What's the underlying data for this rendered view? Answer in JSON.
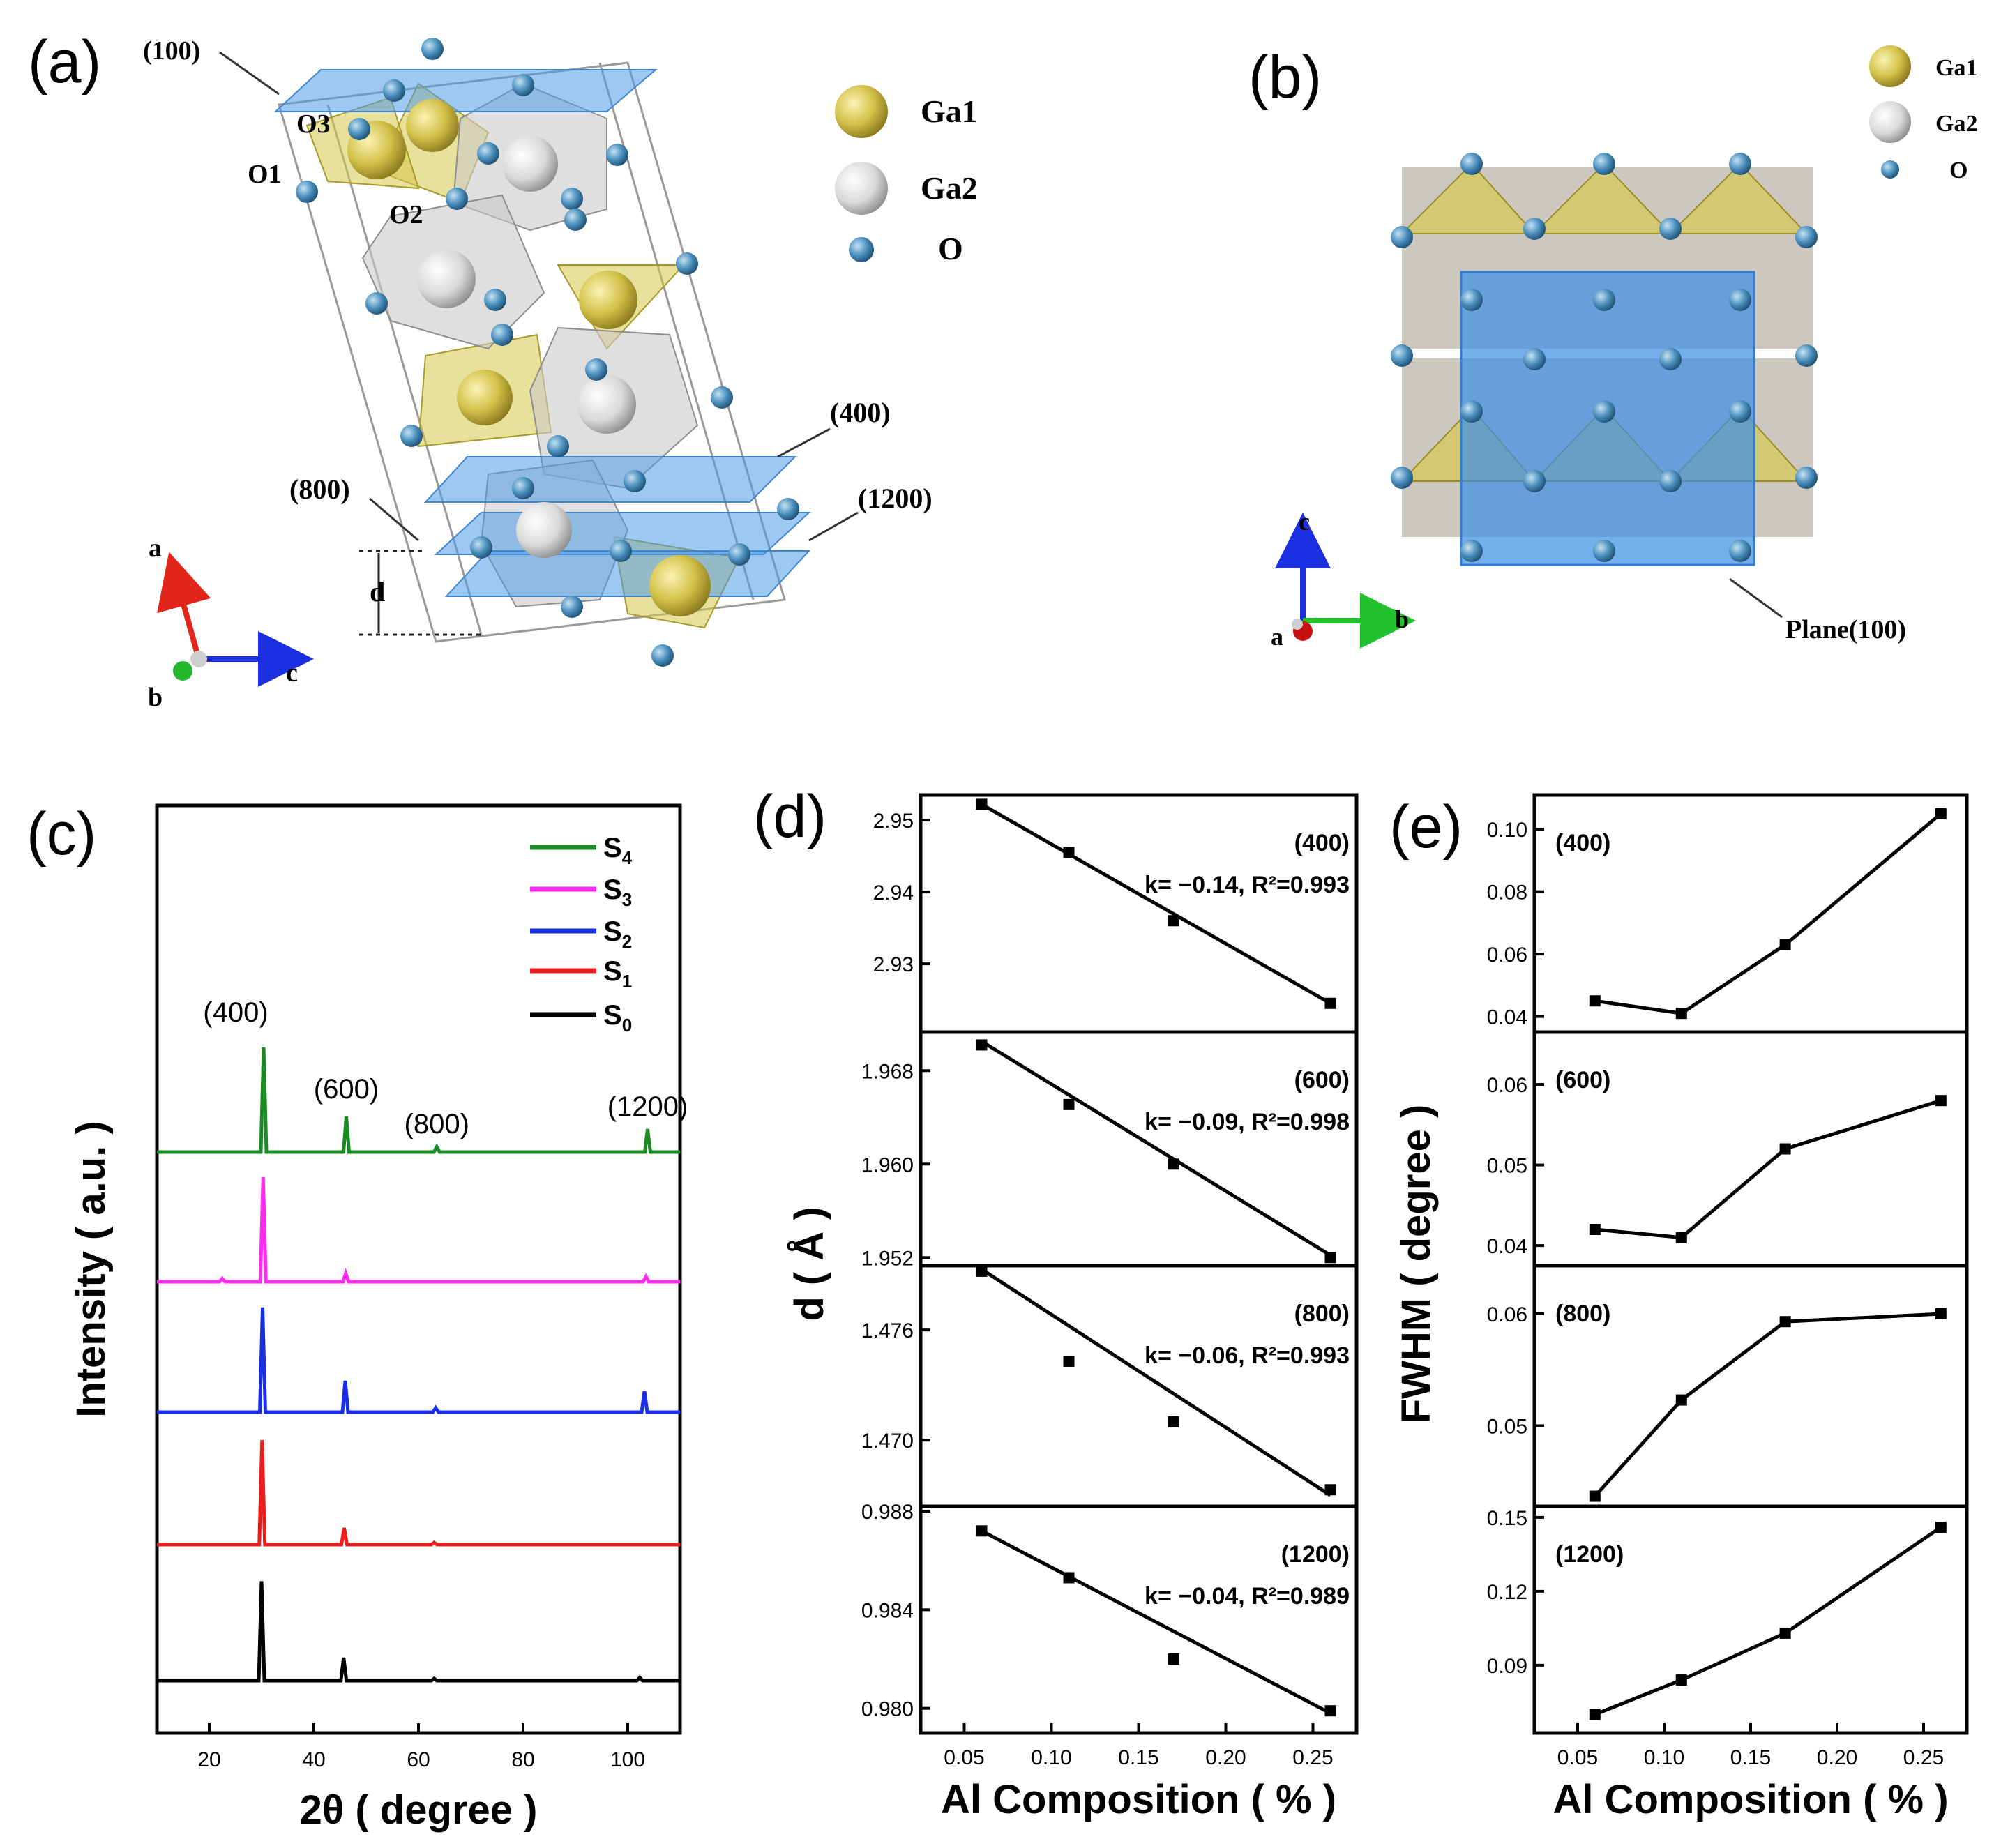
{
  "panel_labels": {
    "a": "(a)",
    "b": "(b)",
    "c": "(c)",
    "d": "(d)",
    "e": "(e)"
  },
  "panel_a": {
    "planes": [
      "(100)",
      "(400)",
      "(800)",
      "(1200)"
    ],
    "oxygen_sites": [
      "O1",
      "O2",
      "O3"
    ],
    "spacing": "d",
    "axes": {
      "a": "a",
      "b": "b",
      "c": "c"
    },
    "legend": [
      {
        "name": "Ga1",
        "color": "#d6c84a"
      },
      {
        "name": "Ga2",
        "color": "#dcdcdc"
      },
      {
        "name": "O",
        "color": "#3f86b4"
      }
    ]
  },
  "panel_b": {
    "plane_label": "Plane(100)",
    "axes": {
      "a": "a",
      "b": "b",
      "c": "c"
    },
    "legend": [
      "Ga1",
      "Ga2",
      "O"
    ]
  },
  "chart_data": [
    {
      "id": "c",
      "type": "line",
      "xlabel": "2θ ( degree )",
      "ylabel": "Intensity ( a.u. )",
      "xlim": [
        10,
        110
      ],
      "xticks": [
        20,
        40,
        60,
        80,
        100
      ],
      "peak_labels": [
        {
          "text": "(400)",
          "x": 30.4
        },
        {
          "text": "(600)",
          "x": 46.2
        },
        {
          "text": "(800)",
          "x": 63.5
        },
        {
          "text": "(1200)",
          "x": 103.8
        }
      ],
      "series": [
        {
          "name": "S4",
          "base": "S",
          "sub": "4",
          "color": "#1a8a22",
          "peaks": [
            [
              30.4,
              1.0
            ],
            [
              46.2,
              0.34
            ],
            [
              63.5,
              0.05
            ],
            [
              103.8,
              0.22
            ]
          ]
        },
        {
          "name": "S3",
          "base": "S",
          "sub": "3",
          "color": "#ff2cf0",
          "peaks": [
            [
              30.3,
              1.0
            ],
            [
              46.1,
              0.08
            ],
            [
              22.5,
              0.03
            ],
            [
              103.5,
              0.05
            ]
          ]
        },
        {
          "name": "S2",
          "base": "S",
          "sub": "2",
          "color": "#1a2ee6",
          "peaks": [
            [
              30.2,
              1.0
            ],
            [
              46.0,
              0.3
            ],
            [
              63.3,
              0.04
            ],
            [
              103.2,
              0.2
            ]
          ]
        },
        {
          "name": "S1",
          "base": "S",
          "sub": "1",
          "color": "#ee1c1c",
          "peaks": [
            [
              30.1,
              1.0
            ],
            [
              45.8,
              0.16
            ],
            [
              63.0,
              0.02
            ]
          ]
        },
        {
          "name": "S0",
          "base": "S",
          "sub": "0",
          "color": "#000000",
          "peaks": [
            [
              30.0,
              0.95
            ],
            [
              45.7,
              0.22
            ],
            [
              63.0,
              0.02
            ],
            [
              102.3,
              0.03
            ]
          ]
        }
      ]
    },
    {
      "id": "d",
      "type": "line",
      "xlabel": "Al Composition ( % )",
      "ylabel": "d ( Å )",
      "xlim": [
        0.025,
        0.275
      ],
      "xticks": [
        0.05,
        0.1,
        0.15,
        0.2,
        0.25
      ],
      "xtick_labels": [
        "0.05",
        "0.10",
        "0.15",
        "0.20",
        "0.25"
      ],
      "subplots": [
        {
          "label": "(400)",
          "fit": "k= −0.14, R²=0.993",
          "ylim": [
            2.9205,
            2.9535
          ],
          "yticks": [
            2.93,
            2.94,
            2.95
          ],
          "ytick_labels": [
            "2.93",
            "2.94",
            "2.95"
          ],
          "x": [
            0.06,
            0.11,
            0.17,
            0.26
          ],
          "y": [
            2.9522,
            2.9455,
            2.936,
            2.9245
          ],
          "fit_line": [
            [
              0.06,
              2.9522
            ],
            [
              0.26,
              2.9245
            ]
          ]
        },
        {
          "label": "(600)",
          "fit": "k= −0.09, R²=0.998",
          "ylim": [
            1.9513,
            1.9713
          ],
          "yticks": [
            1.952,
            1.96,
            1.968
          ],
          "ytick_labels": [
            "1.952",
            "1.960",
            "1.968"
          ],
          "x": [
            0.06,
            0.11,
            0.17,
            0.26
          ],
          "y": [
            1.9702,
            1.9651,
            1.96,
            1.952
          ],
          "fit_line": [
            [
              0.06,
              1.9705
            ],
            [
              0.26,
              1.9522
            ]
          ]
        },
        {
          "label": "(800)",
          "fit": "k= −0.06, R²=0.993",
          "ylim": [
            1.4664,
            1.4795
          ],
          "yticks": [
            1.47,
            1.476
          ],
          "ytick_labels": [
            "1.470",
            "1.476"
          ],
          "x": [
            0.06,
            0.11,
            0.17,
            0.26
          ],
          "y": [
            1.4792,
            1.4743,
            1.471,
            1.4673
          ],
          "fit_line": [
            [
              0.06,
              1.4793
            ],
            [
              0.26,
              1.467
            ]
          ]
        },
        {
          "label": "(1200)",
          "fit": "k= −0.04, R²=0.989",
          "ylim": [
            0.979,
            0.9882
          ],
          "yticks": [
            0.98,
            0.984,
            0.988
          ],
          "ytick_labels": [
            "0.980",
            "0.984",
            "0.988"
          ],
          "x": [
            0.06,
            0.11,
            0.17,
            0.26
          ],
          "y": [
            0.9872,
            0.9853,
            0.982,
            0.9799
          ],
          "fit_line": [
            [
              0.06,
              0.9872
            ],
            [
              0.26,
              0.9798
            ]
          ]
        }
      ]
    },
    {
      "id": "e",
      "type": "line",
      "xlabel": "Al Composition ( % )",
      "ylabel": "FWHM ( degree )",
      "xlim": [
        0.025,
        0.275
      ],
      "xticks": [
        0.05,
        0.1,
        0.15,
        0.2,
        0.25
      ],
      "xtick_labels": [
        "0.05",
        "0.10",
        "0.15",
        "0.20",
        "0.25"
      ],
      "subplots": [
        {
          "label": "(400)",
          "ylim": [
            0.035,
            0.111
          ],
          "yticks": [
            0.04,
            0.06,
            0.08,
            0.1
          ],
          "ytick_labels": [
            "0.04",
            "0.06",
            "0.08",
            "0.10"
          ],
          "x": [
            0.06,
            0.11,
            0.17,
            0.26
          ],
          "y": [
            0.045,
            0.041,
            0.063,
            0.105
          ]
        },
        {
          "label": "(600)",
          "ylim": [
            0.0375,
            0.0665
          ],
          "yticks": [
            0.04,
            0.05,
            0.06
          ],
          "ytick_labels": [
            "0.04",
            "0.05",
            "0.06"
          ],
          "x": [
            0.06,
            0.11,
            0.17,
            0.26
          ],
          "y": [
            0.042,
            0.041,
            0.052,
            0.058
          ]
        },
        {
          "label": "(800)",
          "ylim": [
            0.0428,
            0.0643
          ],
          "yticks": [
            0.05,
            0.06
          ],
          "ytick_labels": [
            "0.05",
            "0.06"
          ],
          "x": [
            0.06,
            0.11,
            0.17,
            0.26
          ],
          "y": [
            0.0437,
            0.0523,
            0.0593,
            0.06
          ]
        },
        {
          "label": "(1200)",
          "ylim": [
            0.0625,
            0.1545
          ],
          "yticks": [
            0.09,
            0.12,
            0.15
          ],
          "ytick_labels": [
            "0.09",
            "0.12",
            "0.15"
          ],
          "x": [
            0.06,
            0.11,
            0.17,
            0.26
          ],
          "y": [
            0.07,
            0.084,
            0.103,
            0.146
          ]
        }
      ]
    }
  ]
}
